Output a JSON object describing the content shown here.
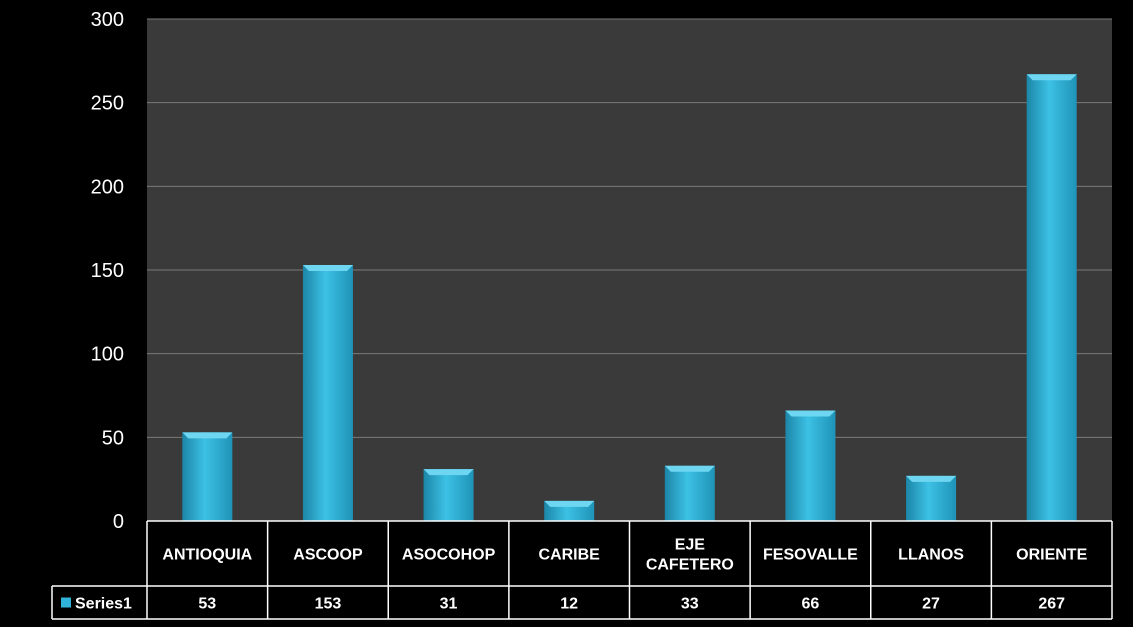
{
  "chart_data": {
    "type": "bar",
    "categories": [
      "ANTIOQUIA",
      "ASCOOP",
      "ASOCOHOP",
      "CARIBE",
      "EJE CAFETERO",
      "FESOVALLE",
      "LLANOS",
      "ORIENTE"
    ],
    "series": [
      {
        "name": "Series1",
        "values": [
          53,
          153,
          31,
          12,
          33,
          66,
          27,
          267
        ]
      }
    ],
    "ylim": [
      0,
      300
    ],
    "yticks": [
      "0",
      "50",
      "100",
      "150",
      "200",
      "250",
      "300"
    ],
    "grid": true,
    "data_table": true,
    "colors": {
      "background": "#000000",
      "plot_area": "#3a3a3a",
      "bar": "#2fb3d9",
      "bar_light": "#6fd6f2",
      "bar_dark": "#1c86a8",
      "grid": "#7a7a7a",
      "text": "#ffffff"
    }
  }
}
